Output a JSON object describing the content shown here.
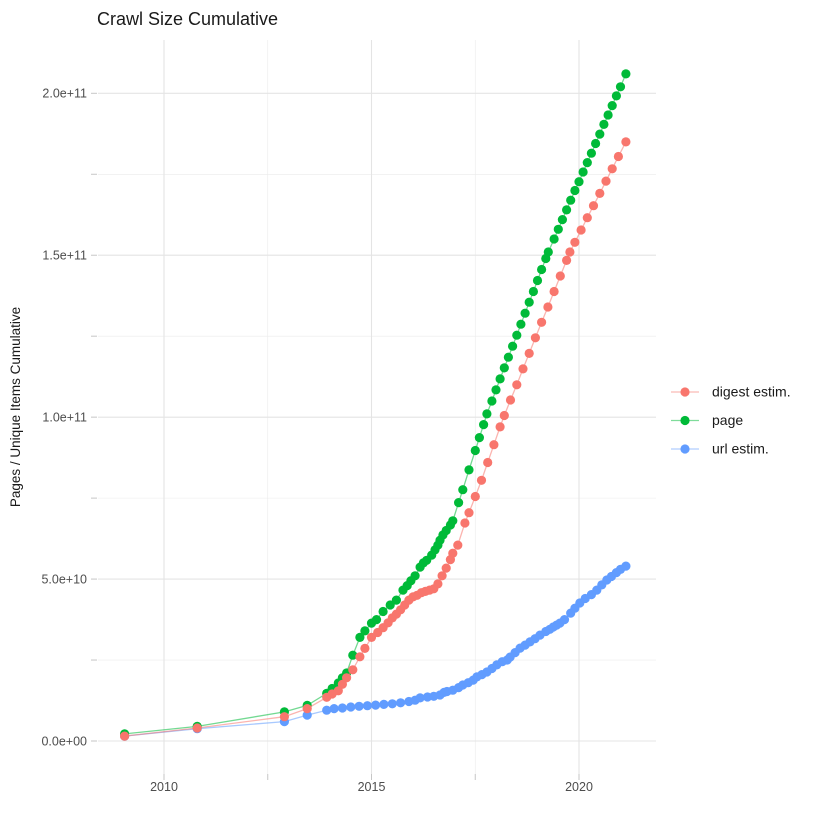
{
  "title": "Crawl Size Cumulative",
  "y_axis": {
    "label": "Pages / Unique Items Cumulative",
    "ticks": [
      {
        "label": "0.0e+00",
        "value": 0
      },
      {
        "label": "",
        "value": 25
      },
      {
        "label": "5.0e+10",
        "value": 50
      },
      {
        "label": "",
        "value": 75
      },
      {
        "label": "1.0e+11",
        "value": 100
      },
      {
        "label": "",
        "value": 125
      },
      {
        "label": "1.5e+11",
        "value": 150
      },
      {
        "label": "",
        "value": 175
      },
      {
        "label": "2.0e+11",
        "value": 200
      }
    ]
  },
  "x_axis": {
    "ticks": [
      {
        "label": "2010",
        "value": 2010
      },
      {
        "label": "",
        "value": 2012.5
      },
      {
        "label": "2015",
        "value": 2015
      },
      {
        "label": "",
        "value": 2017.5
      },
      {
        "label": "2020",
        "value": 2020
      }
    ]
  },
  "legend": {
    "entries": [
      {
        "label": "digest estim.",
        "color": "#F8766D"
      },
      {
        "label": "page",
        "color": "#00BA38"
      },
      {
        "label": "url estim.",
        "color": "#619CFF"
      }
    ]
  },
  "chart_data": {
    "type": "line",
    "title": "Crawl Size Cumulative",
    "xlabel": "",
    "ylabel": "Pages / Unique Items Cumulative",
    "y_value_unit": "1e9 pages (billions)",
    "x_range": [
      2008.4,
      2021.9
    ],
    "y_range_billions": [
      0,
      216
    ],
    "grid": true,
    "legend_position": "right-center",
    "x_major_gridlines": [
      2010,
      2015,
      2020
    ],
    "x_minor_gridlines": [
      2012.5,
      2017.5
    ],
    "y_major_gridlines": [
      0,
      50,
      100,
      150,
      200
    ],
    "y_minor_gridlines": [
      25,
      75,
      125,
      175
    ],
    "series": [
      {
        "name": "digest estim.",
        "color": "#F8766D",
        "points": [
          [
            2009.05,
            1.5
          ],
          [
            2010.8,
            4
          ],
          [
            2012.9,
            7.5
          ],
          [
            2013.45,
            10
          ],
          [
            2013.92,
            13.5
          ],
          [
            2014.05,
            14.5
          ],
          [
            2014.2,
            15.5
          ],
          [
            2014.3,
            17.5
          ],
          [
            2014.4,
            19.5
          ],
          [
            2014.55,
            22
          ],
          [
            2014.72,
            26
          ],
          [
            2014.84,
            28.6
          ],
          [
            2015.0,
            32
          ],
          [
            2015.15,
            33.5
          ],
          [
            2015.28,
            35
          ],
          [
            2015.4,
            36.5
          ],
          [
            2015.5,
            38
          ],
          [
            2015.6,
            39.2
          ],
          [
            2015.7,
            40.5
          ],
          [
            2015.8,
            42
          ],
          [
            2015.9,
            43.5
          ],
          [
            2016.0,
            44.5
          ],
          [
            2016.1,
            45
          ],
          [
            2016.2,
            45.8
          ],
          [
            2016.3,
            46.2
          ],
          [
            2016.4,
            46.6
          ],
          [
            2016.5,
            47
          ],
          [
            2016.6,
            48.5
          ],
          [
            2016.7,
            51
          ],
          [
            2016.8,
            53.4
          ],
          [
            2016.9,
            56
          ],
          [
            2016.96,
            58
          ],
          [
            2017.08,
            60.5
          ],
          [
            2017.25,
            67.3
          ],
          [
            2017.35,
            70.5
          ],
          [
            2017.5,
            75.5
          ],
          [
            2017.65,
            80.5
          ],
          [
            2017.8,
            86
          ],
          [
            2017.95,
            91.5
          ],
          [
            2018.1,
            97
          ],
          [
            2018.2,
            100.5
          ],
          [
            2018.35,
            105.3
          ],
          [
            2018.5,
            110
          ],
          [
            2018.65,
            114.9
          ],
          [
            2018.8,
            119.7
          ],
          [
            2018.95,
            124.5
          ],
          [
            2019.1,
            129.3
          ],
          [
            2019.25,
            134
          ],
          [
            2019.4,
            138.8
          ],
          [
            2019.55,
            143.6
          ],
          [
            2019.7,
            148.4
          ],
          [
            2019.78,
            151
          ],
          [
            2019.9,
            154
          ],
          [
            2020.05,
            157.8
          ],
          [
            2020.2,
            161.6
          ],
          [
            2020.35,
            165.3
          ],
          [
            2020.5,
            169.1
          ],
          [
            2020.65,
            172.9
          ],
          [
            2020.8,
            176.7
          ],
          [
            2020.95,
            180.5
          ],
          [
            2021.13,
            185
          ]
        ]
      },
      {
        "name": "page",
        "color": "#00BA38",
        "points": [
          [
            2009.05,
            2.2
          ],
          [
            2010.8,
            4.5
          ],
          [
            2012.9,
            9
          ],
          [
            2013.45,
            11
          ],
          [
            2013.92,
            14.7
          ],
          [
            2014.05,
            16.2
          ],
          [
            2014.2,
            17.9
          ],
          [
            2014.3,
            19.5
          ],
          [
            2014.4,
            21
          ],
          [
            2014.55,
            26.5
          ],
          [
            2014.72,
            32
          ],
          [
            2014.84,
            34
          ],
          [
            2015.0,
            36.4
          ],
          [
            2015.12,
            37.5
          ],
          [
            2015.28,
            40
          ],
          [
            2015.45,
            42
          ],
          [
            2015.6,
            43.5
          ],
          [
            2015.76,
            46.6
          ],
          [
            2015.86,
            48
          ],
          [
            2015.95,
            49.5
          ],
          [
            2016.05,
            51
          ],
          [
            2016.17,
            53.7
          ],
          [
            2016.25,
            55
          ],
          [
            2016.33,
            55.8
          ],
          [
            2016.45,
            57.4
          ],
          [
            2016.53,
            59
          ],
          [
            2016.6,
            60.5
          ],
          [
            2016.65,
            62
          ],
          [
            2016.72,
            63.6
          ],
          [
            2016.8,
            65
          ],
          [
            2016.9,
            66.7
          ],
          [
            2016.96,
            68
          ],
          [
            2017.1,
            73.6
          ],
          [
            2017.2,
            77.6
          ],
          [
            2017.35,
            83.7
          ],
          [
            2017.5,
            89.7
          ],
          [
            2017.6,
            93.7
          ],
          [
            2017.7,
            97.7
          ],
          [
            2017.78,
            101
          ],
          [
            2017.9,
            105
          ],
          [
            2018.0,
            108.4
          ],
          [
            2018.1,
            111.8
          ],
          [
            2018.2,
            115.2
          ],
          [
            2018.3,
            118.5
          ],
          [
            2018.4,
            121.9
          ],
          [
            2018.5,
            125.3
          ],
          [
            2018.6,
            128.7
          ],
          [
            2018.7,
            132.1
          ],
          [
            2018.8,
            135.5
          ],
          [
            2018.9,
            138.8
          ],
          [
            2019.0,
            142.2
          ],
          [
            2019.1,
            145.6
          ],
          [
            2019.2,
            149
          ],
          [
            2019.26,
            151
          ],
          [
            2019.4,
            155
          ],
          [
            2019.5,
            158
          ],
          [
            2019.6,
            161
          ],
          [
            2019.7,
            164
          ],
          [
            2019.8,
            167
          ],
          [
            2019.9,
            170
          ],
          [
            2020.0,
            172.7
          ],
          [
            2020.1,
            175.7
          ],
          [
            2020.2,
            178.6
          ],
          [
            2020.3,
            181.5
          ],
          [
            2020.4,
            184.5
          ],
          [
            2020.5,
            187.4
          ],
          [
            2020.6,
            190.4
          ],
          [
            2020.7,
            193.3
          ],
          [
            2020.8,
            196.2
          ],
          [
            2020.9,
            199.2
          ],
          [
            2021.0,
            202
          ],
          [
            2021.13,
            206
          ]
        ]
      },
      {
        "name": "url estim.",
        "color": "#619CFF",
        "points": [
          [
            2009.05,
            1.5
          ],
          [
            2010.8,
            3.8
          ],
          [
            2012.9,
            6
          ],
          [
            2013.45,
            8
          ],
          [
            2013.92,
            9.5
          ],
          [
            2014.1,
            10
          ],
          [
            2014.3,
            10.2
          ],
          [
            2014.5,
            10.5
          ],
          [
            2014.7,
            10.7
          ],
          [
            2014.9,
            10.9
          ],
          [
            2015.1,
            11.1
          ],
          [
            2015.3,
            11.3
          ],
          [
            2015.5,
            11.5
          ],
          [
            2015.7,
            11.8
          ],
          [
            2015.9,
            12.2
          ],
          [
            2016.05,
            12.6
          ],
          [
            2016.17,
            13.3
          ],
          [
            2016.35,
            13.6
          ],
          [
            2016.5,
            13.8
          ],
          [
            2016.65,
            14.2
          ],
          [
            2016.75,
            15
          ],
          [
            2016.82,
            15.3
          ],
          [
            2016.96,
            15.7
          ],
          [
            2017.1,
            16.5
          ],
          [
            2017.2,
            17.3
          ],
          [
            2017.33,
            18
          ],
          [
            2017.45,
            18.8
          ],
          [
            2017.54,
            19.8
          ],
          [
            2017.66,
            20.5
          ],
          [
            2017.78,
            21.3
          ],
          [
            2017.9,
            22.4
          ],
          [
            2018.02,
            23.5
          ],
          [
            2018.15,
            24.5
          ],
          [
            2018.27,
            25
          ],
          [
            2018.34,
            25.9
          ],
          [
            2018.46,
            27.3
          ],
          [
            2018.58,
            28.7
          ],
          [
            2018.7,
            29.6
          ],
          [
            2018.82,
            30.6
          ],
          [
            2018.94,
            31.6
          ],
          [
            2019.06,
            32.7
          ],
          [
            2019.2,
            33.8
          ],
          [
            2019.3,
            34.5
          ],
          [
            2019.38,
            35.2
          ],
          [
            2019.46,
            35.8
          ],
          [
            2019.54,
            36.4
          ],
          [
            2019.65,
            37.5
          ],
          [
            2019.8,
            39.5
          ],
          [
            2019.9,
            41
          ],
          [
            2020.02,
            42.6
          ],
          [
            2020.15,
            44
          ],
          [
            2020.3,
            45.2
          ],
          [
            2020.43,
            46.6
          ],
          [
            2020.55,
            48.2
          ],
          [
            2020.67,
            49.7
          ],
          [
            2020.78,
            50.8
          ],
          [
            2020.9,
            52
          ],
          [
            2021.0,
            53
          ],
          [
            2021.13,
            54
          ]
        ]
      }
    ]
  }
}
